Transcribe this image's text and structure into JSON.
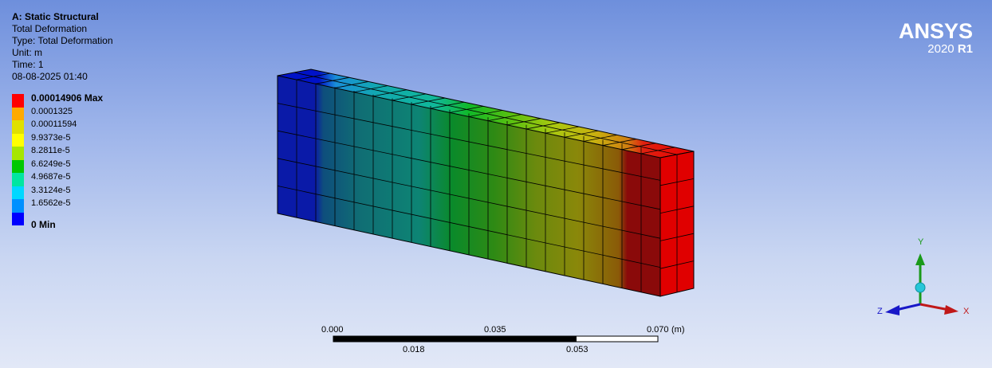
{
  "info": {
    "title": "A: Static Structural",
    "line1": "Total Deformation",
    "line2": "Type: Total Deformation",
    "line3": "Unit: m",
    "line4": "Time: 1",
    "line5": "08-08-2025 01:40"
  },
  "legend": {
    "labels": [
      "0.00014906 Max",
      "0.0001325",
      "0.00011594",
      "9.9373e-5",
      "8.2811e-5",
      "6.6249e-5",
      "4.9687e-5",
      "3.3124e-5",
      "1.6562e-5"
    ],
    "min_label": "0 Min",
    "colors": [
      "#ff0000",
      "#ffaa00",
      "#e0e000",
      "#a6e600",
      "#00c800",
      "#00e6a0",
      "#00d8ff",
      "#0090ff",
      "#0000ff"
    ]
  },
  "logo": {
    "brand": "ANSYS",
    "year": "2020",
    "release": "R1"
  },
  "scale_bar": {
    "top_labels": [
      "0.000",
      "0.035",
      "0.070"
    ],
    "bottom_labels": [
      "0.018",
      "0.053"
    ],
    "unit": "(m)"
  },
  "triad": {
    "y": "Y",
    "x": "X",
    "z": "Z"
  }
}
